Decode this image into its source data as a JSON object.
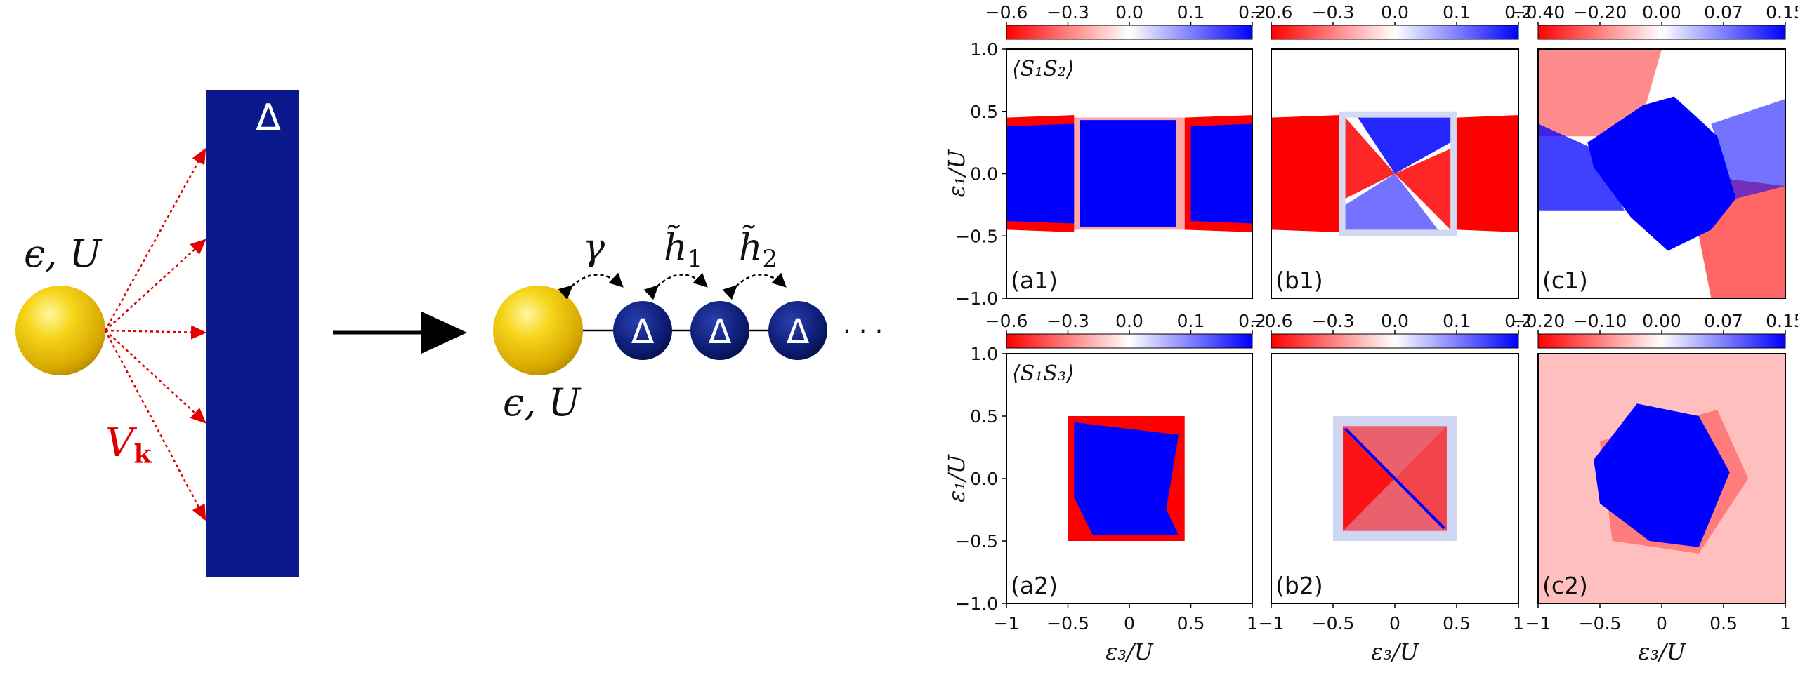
{
  "left": {
    "impurity_label": "ϵ, U",
    "bath_label": "Δ",
    "hybridization_label": "V",
    "hybridization_sub": "k",
    "chain_impurity_label": "ϵ, U",
    "hop_labels": [
      {
        "main": "γ",
        "sub": ""
      },
      {
        "main": "h̃",
        "sub": "1"
      },
      {
        "main": "h̃",
        "sub": "2"
      }
    ],
    "chain_site_label": "Δ",
    "ellipsis": "· · ·"
  },
  "colors": {
    "impurity": "#f2cf14",
    "bath": "#0a1a8c",
    "chain_site": "#0b1a6c",
    "arrow_red": "#e00000",
    "cmap_neg": "#ff0000",
    "cmap_pos": "#0000ff"
  },
  "heatmaps": {
    "ylabel": "ε₁/U",
    "xlabel": "ε₃/U",
    "y_ticks": [
      "1.0",
      "0.5",
      "0.0",
      "−0.5",
      "−1.0"
    ],
    "x_ticks": [
      "−1",
      "−0.5",
      "0",
      "0.5",
      "1"
    ],
    "row_titles": [
      "⟨S₁S₂⟩",
      "⟨S₁S₃⟩"
    ],
    "colorbars": [
      [
        "−0.6",
        "−0.3",
        "0.0",
        "0.1",
        "0.2"
      ],
      [
        "−0.6",
        "−0.3",
        "0.0",
        "0.1",
        "0.2"
      ],
      [
        "−0.40",
        "−0.20",
        "0.00",
        "0.07",
        "0.15"
      ],
      [
        "−0.6",
        "−0.3",
        "0.0",
        "0.1",
        "0.2"
      ],
      [
        "−0.6",
        "−0.3",
        "0.0",
        "0.1",
        "0.2"
      ],
      [
        "−0.20",
        "−0.10",
        "0.00",
        "0.07",
        "0.15"
      ]
    ],
    "panel_labels": [
      "(a1)",
      "(b1)",
      "(c1)",
      "(a2)",
      "(b2)",
      "(c2)"
    ]
  }
}
